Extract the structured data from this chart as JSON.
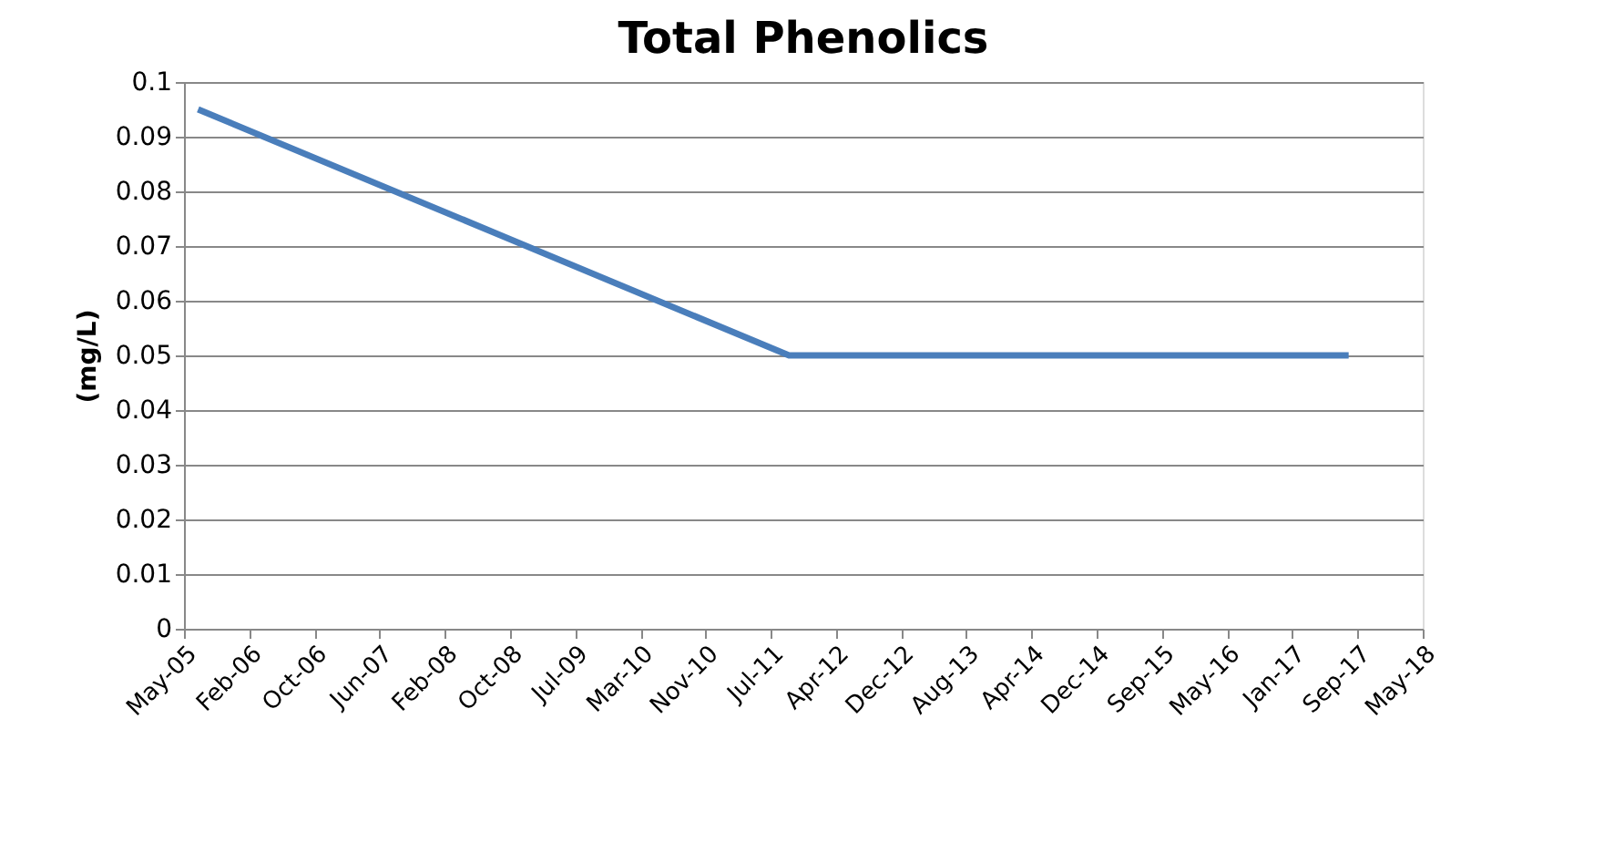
{
  "chart_data": {
    "type": "line",
    "title": "Total Phenolics",
    "ylabel": "(mg/L)",
    "x": [
      "2005-07-21",
      "2011-10-04",
      "2017-08-19"
    ],
    "series": [
      {
        "color": "#4a7ebb",
        "values": [
          0.095,
          0.05,
          0.05
        ]
      }
    ],
    "xlim": [
      "2005-05-28",
      "2018-05-30"
    ],
    "xticks": [
      {
        "value": "2005-05-28",
        "label": "May-05"
      },
      {
        "value": "2006-02-02",
        "label": "Feb-06"
      },
      {
        "value": "2006-10-10",
        "label": "Oct-06"
      },
      {
        "value": "2007-06-17",
        "label": "Jun-07"
      },
      {
        "value": "2008-02-22",
        "label": "Feb-08"
      },
      {
        "value": "2008-10-29",
        "label": "Oct-08"
      },
      {
        "value": "2009-07-06",
        "label": "Jul-09"
      },
      {
        "value": "2010-03-13",
        "label": "Mar-10"
      },
      {
        "value": "2010-11-18",
        "label": "Nov-10"
      },
      {
        "value": "2011-07-26",
        "label": "Jul-11"
      },
      {
        "value": "2012-04-01",
        "label": "Apr-12"
      },
      {
        "value": "2012-12-07",
        "label": "Dec-12"
      },
      {
        "value": "2013-08-14",
        "label": "Aug-13"
      },
      {
        "value": "2014-04-21",
        "label": "Apr-14"
      },
      {
        "value": "2014-12-27",
        "label": "Dec-14"
      },
      {
        "value": "2015-09-03",
        "label": "Sep-15"
      },
      {
        "value": "2016-05-10",
        "label": "May-16"
      },
      {
        "value": "2017-01-15",
        "label": "Jan-17"
      },
      {
        "value": "2017-09-22",
        "label": "Sep-17"
      },
      {
        "value": "2018-05-30",
        "label": "May-18"
      }
    ],
    "ylim": [
      0,
      0.1
    ],
    "yticks": [
      0,
      0.01,
      0.02,
      0.03,
      0.04,
      0.05,
      0.06,
      0.07,
      0.08,
      0.09,
      0.1
    ],
    "grid": "y",
    "legend": false,
    "marker": "none",
    "line_style": "solid"
  }
}
